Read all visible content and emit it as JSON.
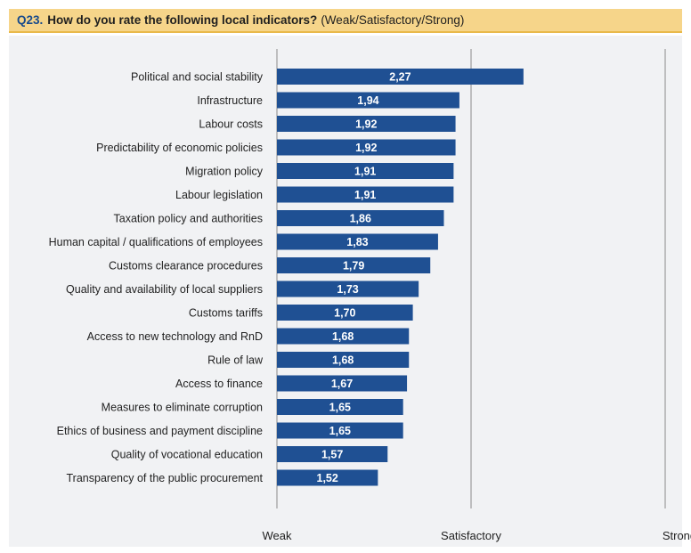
{
  "header": {
    "qnum": "Q23.",
    "title": "How do you rate the following local indicators?",
    "scale_note": "(Weak/Satisfactory/Strong)"
  },
  "chart_data": {
    "type": "bar",
    "orientation": "horizontal",
    "title": "",
    "categories": [
      "Political and social stability",
      "Infrastructure",
      "Labour costs",
      "Predictability of economic policies",
      "Migration policy",
      "Labour legislation",
      "Taxation policy and authorities",
      "Human capital / qualifications of employees",
      "Customs clearance procedures",
      "Quality and availability of local suppliers",
      "Customs tariffs",
      "Access to new technology and RnD",
      "Rule of law",
      "Access to finance",
      "Measures to eliminate corruption",
      "Ethics of business and payment discipline",
      "Quality of vocational education",
      "Transparency of the public procurement"
    ],
    "values": [
      2.27,
      1.94,
      1.92,
      1.92,
      1.91,
      1.91,
      1.86,
      1.83,
      1.79,
      1.73,
      1.7,
      1.68,
      1.68,
      1.67,
      1.65,
      1.65,
      1.57,
      1.52
    ],
    "value_labels": [
      "2,27",
      "1,94",
      "1,92",
      "1,92",
      "1,91",
      "1,91",
      "1,86",
      "1,83",
      "1,79",
      "1,73",
      "1,70",
      "1,68",
      "1,68",
      "1,67",
      "1,65",
      "1,65",
      "1,57",
      "1,52"
    ],
    "xlim": [
      1,
      3
    ],
    "xticks": [
      {
        "value": 1,
        "label": "Weak"
      },
      {
        "value": 2,
        "label": "Satisfactory"
      },
      {
        "value": 3,
        "label": "Strong"
      }
    ],
    "grid": true,
    "bar_color": "#1f5093"
  }
}
